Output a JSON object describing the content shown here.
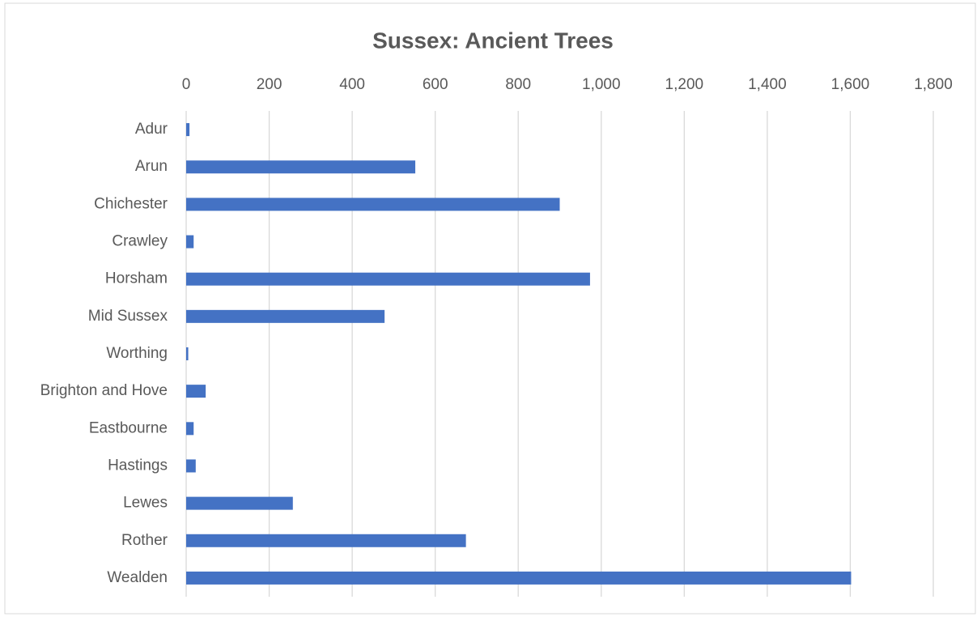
{
  "chart_data": {
    "type": "bar",
    "orientation": "horizontal",
    "title": "Sussex: Ancient Trees",
    "categories": [
      "Adur",
      "Arun",
      "Chichester",
      "Crawley",
      "Horsham",
      "Mid Sussex",
      "Worthing",
      "Brighton and Hove",
      "Eastbourne",
      "Hastings",
      "Lewes",
      "Rother",
      "Wealden"
    ],
    "values": [
      8,
      552,
      900,
      18,
      973,
      478,
      5,
      47,
      18,
      23,
      257,
      674,
      1602
    ],
    "color": "#4472c4",
    "xlim": [
      0,
      1800
    ],
    "xticks": [
      0,
      200,
      400,
      600,
      800,
      {
        "value": 1000,
        "label": "1,000"
      },
      {
        "value": 1200,
        "label": "1,200"
      },
      {
        "value": 1400,
        "label": "1,400"
      },
      {
        "value": 1600,
        "label": "1,600"
      },
      {
        "value": 1800,
        "label": "1,800"
      }
    ],
    "grid": true
  }
}
